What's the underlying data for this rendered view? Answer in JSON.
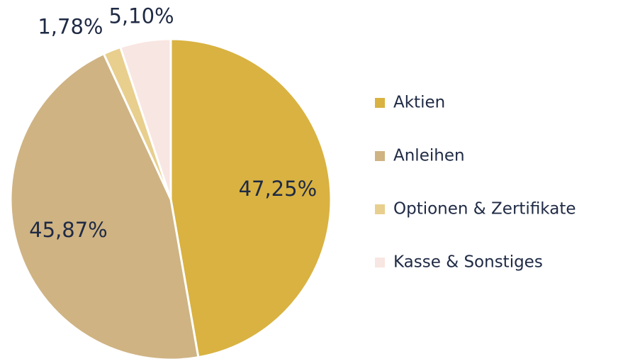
{
  "chart_data": {
    "type": "pie",
    "categories": [
      "Aktien",
      "Anleihen",
      "Optionen & Zertifikate",
      "Kasse & Sonstiges"
    ],
    "values": [
      47.25,
      45.87,
      1.78,
      5.1
    ],
    "value_labels": [
      "47,25%",
      "45,87%",
      "1,78%",
      "5,10%"
    ],
    "colors": [
      "#d9b241",
      "#cfb383",
      "#e8cf8e",
      "#f8e6e2"
    ],
    "legend": "right"
  }
}
